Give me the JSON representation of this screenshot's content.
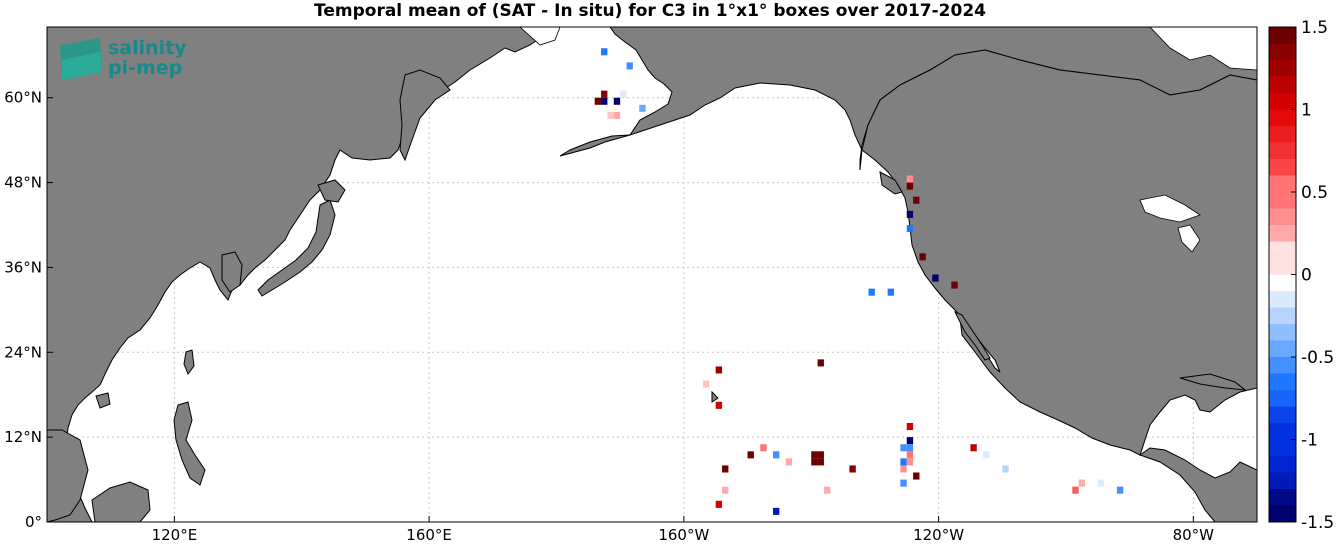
{
  "title": "Temporal mean of (SAT - In situ) for C3 in 1°x1° boxes over 2017-2024",
  "logo": {
    "line1": "salinity",
    "line2": "pi-mep"
  },
  "axes": {
    "x_ticks": [
      {
        "lon": 120,
        "label": "120°E"
      },
      {
        "lon": 160,
        "label": "160°E"
      },
      {
        "lon": 200,
        "label": "160°W"
      },
      {
        "lon": 240,
        "label": "120°W"
      },
      {
        "lon": 280,
        "label": "80°W"
      }
    ],
    "y_ticks": [
      {
        "lat": 0,
        "label": "0°"
      },
      {
        "lat": 12,
        "label": "12°N"
      },
      {
        "lat": 24,
        "label": "24°N"
      },
      {
        "lat": 36,
        "label": "36°N"
      },
      {
        "lat": 48,
        "label": "48°N"
      },
      {
        "lat": 60,
        "label": "60°N"
      }
    ],
    "lon_range": [
      100,
      290
    ],
    "lat_range": [
      0,
      70
    ]
  },
  "colorbar": {
    "range": [
      -1.5,
      1.5
    ],
    "ticks": [
      "1.5",
      "1",
      "0.5",
      "0",
      "-0.5",
      "-1",
      "-1.5"
    ],
    "colormap": "blue-white-red"
  },
  "colors": {
    "land": "#808080",
    "ocean": "#ffffff",
    "coast": "#000000",
    "grid": "#c8c8c8"
  },
  "chart_data": {
    "type": "heatmap",
    "title": "Temporal mean of (SAT - In situ) for C3 in 1°x1° boxes over 2017-2024",
    "xlabel": "",
    "ylabel": "",
    "cell_size_deg": 1,
    "points": [
      {
        "lon": 187.5,
        "lat": 66.5,
        "value": -0.6
      },
      {
        "lon": 191.5,
        "lat": 64.5,
        "value": -0.5
      },
      {
        "lon": 186.5,
        "lat": 59.5,
        "value": 1.5
      },
      {
        "lon": 187.5,
        "lat": 60.5,
        "value": 1.4
      },
      {
        "lon": 187.5,
        "lat": 59.5,
        "value": -1.5
      },
      {
        "lon": 189.5,
        "lat": 59.5,
        "value": -1.5
      },
      {
        "lon": 190.5,
        "lat": 60.5,
        "value": -0.1
      },
      {
        "lon": 188.5,
        "lat": 57.5,
        "value": 0.2
      },
      {
        "lon": 189.5,
        "lat": 57.5,
        "value": 0.3
      },
      {
        "lon": 193.5,
        "lat": 58.5,
        "value": -0.4
      },
      {
        "lon": 235.5,
        "lat": 48.5,
        "value": 0.4
      },
      {
        "lon": 235.5,
        "lat": 47.5,
        "value": 1.5
      },
      {
        "lon": 236.5,
        "lat": 45.5,
        "value": 1.5
      },
      {
        "lon": 235.5,
        "lat": 43.5,
        "value": -1.6
      },
      {
        "lon": 235.5,
        "lat": 41.5,
        "value": -0.6
      },
      {
        "lon": 237.5,
        "lat": 37.5,
        "value": 1.5
      },
      {
        "lon": 239.5,
        "lat": 34.5,
        "value": -1.5
      },
      {
        "lon": 242.5,
        "lat": 33.5,
        "value": 1.5
      },
      {
        "lon": 229.5,
        "lat": 32.5,
        "value": -0.6
      },
      {
        "lon": 232.5,
        "lat": 32.5,
        "value": -0.6
      },
      {
        "lon": 205.5,
        "lat": 21.5,
        "value": 1.3
      },
      {
        "lon": 203.5,
        "lat": 19.5,
        "value": 0.2
      },
      {
        "lon": 205.5,
        "lat": 16.5,
        "value": 1.1
      },
      {
        "lon": 221.5,
        "lat": 22.5,
        "value": 1.5
      },
      {
        "lon": 235.5,
        "lat": 13.5,
        "value": 1.1
      },
      {
        "lon": 235.5,
        "lat": 11.5,
        "value": -1.6
      },
      {
        "lon": 235.5,
        "lat": 10.5,
        "value": -0.5
      },
      {
        "lon": 234.5,
        "lat": 10.5,
        "value": -0.5
      },
      {
        "lon": 235.5,
        "lat": 9.5,
        "value": 0.5
      },
      {
        "lon": 234.5,
        "lat": 8.5,
        "value": -0.6
      },
      {
        "lon": 235.5,
        "lat": 8.5,
        "value": 0.4
      },
      {
        "lon": 234.5,
        "lat": 7.5,
        "value": 0.4
      },
      {
        "lon": 236.5,
        "lat": 6.5,
        "value": 1.5
      },
      {
        "lon": 234.5,
        "lat": 5.5,
        "value": -0.5
      },
      {
        "lon": 212.5,
        "lat": 10.5,
        "value": 0.5
      },
      {
        "lon": 210.5,
        "lat": 9.5,
        "value": 1.5
      },
      {
        "lon": 214.5,
        "lat": 9.5,
        "value": -0.5
      },
      {
        "lon": 216.5,
        "lat": 8.5,
        "value": 0.3
      },
      {
        "lon": 220.5,
        "lat": 9.5,
        "value": 1.5
      },
      {
        "lon": 221.5,
        "lat": 9.5,
        "value": 1.5
      },
      {
        "lon": 220.5,
        "lat": 8.5,
        "value": 1.5
      },
      {
        "lon": 221.5,
        "lat": 8.5,
        "value": 1.5
      },
      {
        "lon": 226.5,
        "lat": 7.5,
        "value": 1.4
      },
      {
        "lon": 206.5,
        "lat": 7.5,
        "value": 1.5
      },
      {
        "lon": 206.5,
        "lat": 4.5,
        "value": 0.3
      },
      {
        "lon": 205.5,
        "lat": 2.5,
        "value": 1.1
      },
      {
        "lon": 222.5,
        "lat": 4.5,
        "value": 0.3
      },
      {
        "lon": 214.5,
        "lat": 1.5,
        "value": -1.2
      },
      {
        "lon": 245.5,
        "lat": 10.5,
        "value": 1.2
      },
      {
        "lon": 247.5,
        "lat": 9.5,
        "value": -0.1
      },
      {
        "lon": 250.5,
        "lat": 7.5,
        "value": -0.2
      },
      {
        "lon": 262.5,
        "lat": 5.5,
        "value": 0.3
      },
      {
        "lon": 261.5,
        "lat": 4.5,
        "value": 0.6
      },
      {
        "lon": 265.5,
        "lat": 5.5,
        "value": -0.1
      },
      {
        "lon": 268.5,
        "lat": 4.5,
        "value": -0.5
      }
    ]
  }
}
